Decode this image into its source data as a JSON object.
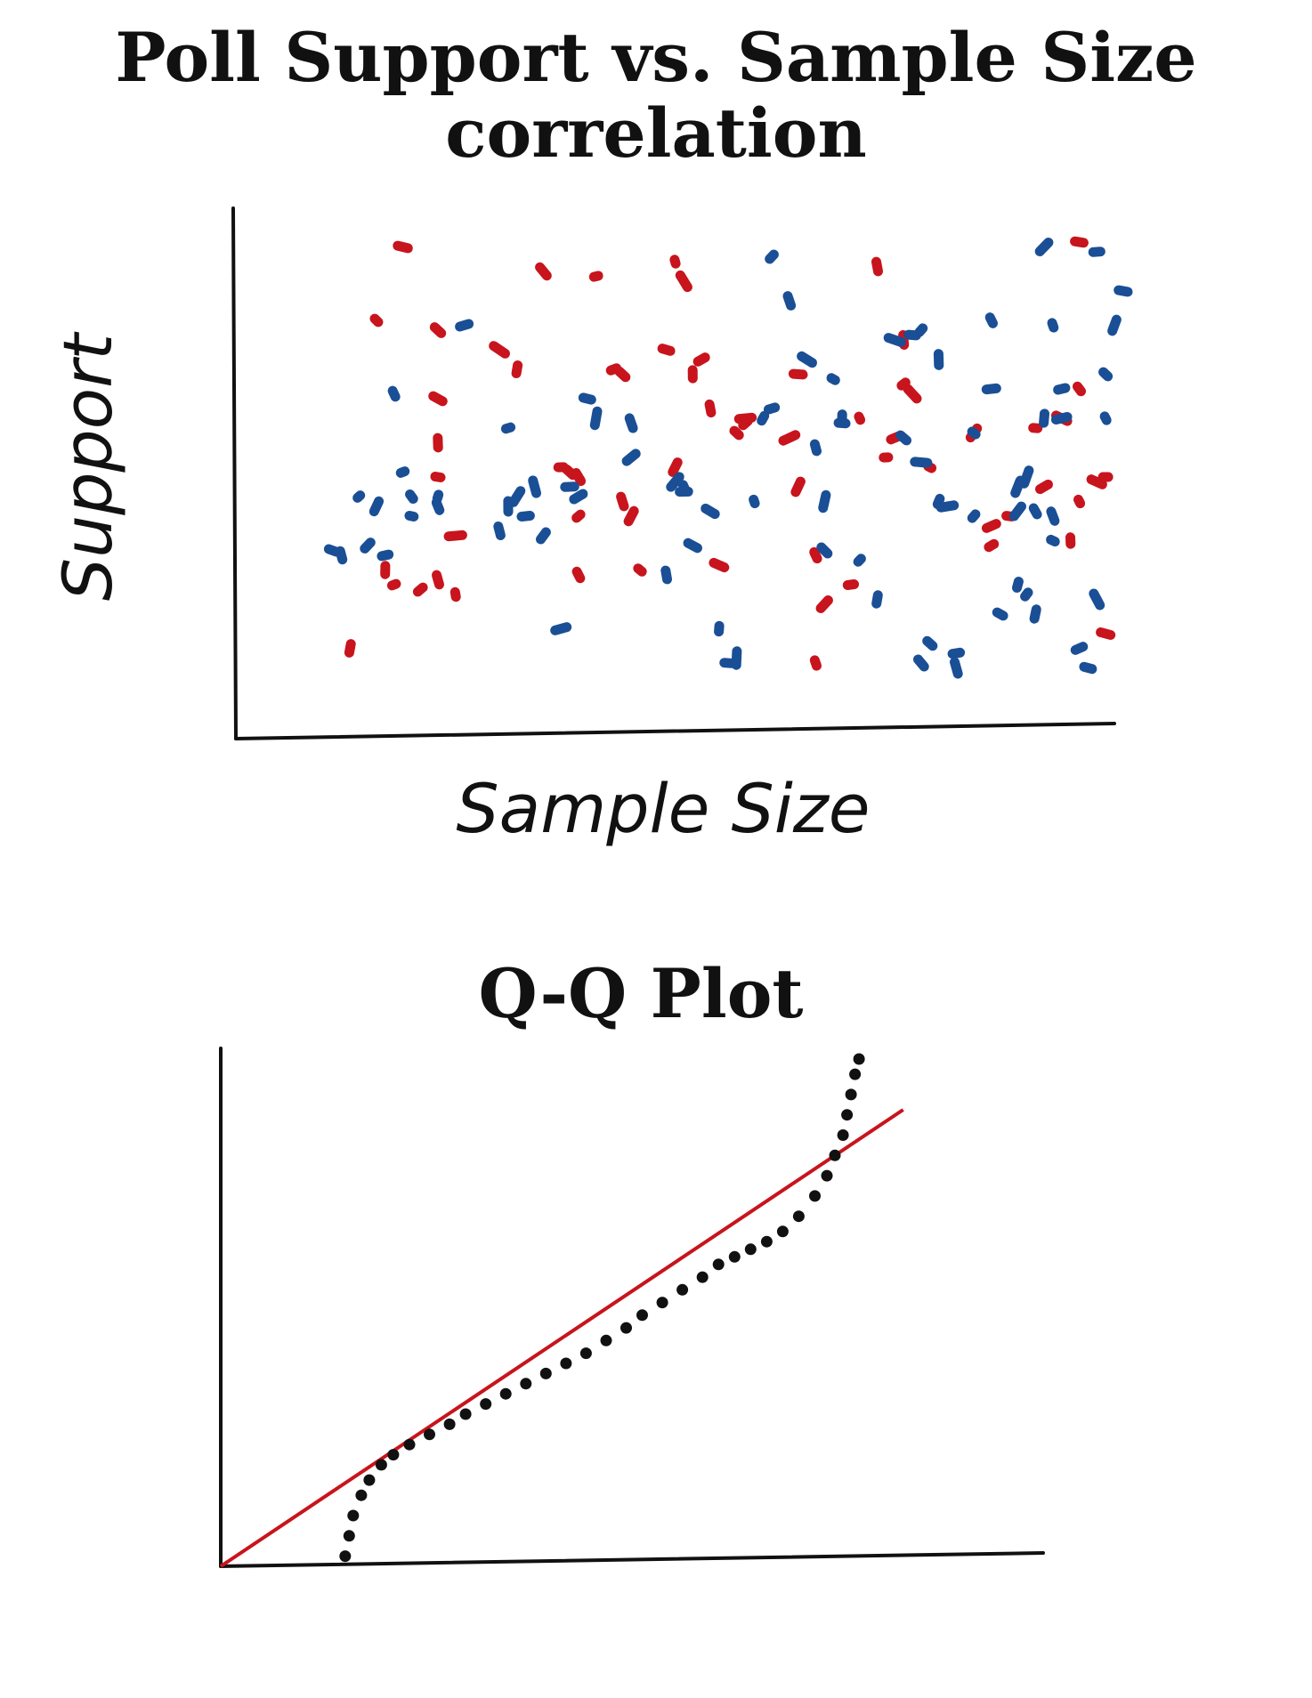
{
  "chart_data": [
    {
      "type": "scatter",
      "title": "Poll Support vs. Sample Size correlation",
      "xlabel": "Sample Size",
      "ylabel": "Support",
      "xlim": [
        0,
        100
      ],
      "ylim": [
        0,
        100
      ],
      "grid": false,
      "series": [
        {
          "color": "#c8141c",
          "points": [
            [
              13,
              13
            ],
            [
              16,
              80
            ],
            [
              17,
              29
            ],
            [
              18,
              26
            ],
            [
              23,
              27
            ],
            [
              21,
              25
            ],
            [
              19,
              95
            ],
            [
              23,
              78
            ],
            [
              23,
              64
            ],
            [
              23,
              55
            ],
            [
              23,
              48
            ],
            [
              25,
              36
            ],
            [
              25,
              24
            ],
            [
              30,
              74
            ],
            [
              32,
              70
            ],
            [
              35,
              90
            ],
            [
              37,
              50
            ],
            [
              38,
              49
            ],
            [
              39,
              48
            ],
            [
              39,
              40
            ],
            [
              39,
              28
            ],
            [
              41,
              89
            ],
            [
              43,
              70
            ],
            [
              44,
              69
            ],
            [
              44,
              43
            ],
            [
              45,
              40
            ],
            [
              46,
              29
            ],
            [
              49,
              74
            ],
            [
              50,
              92
            ],
            [
              50,
              50
            ],
            [
              51,
              88
            ],
            [
              52,
              69
            ],
            [
              53,
              72
            ],
            [
              54,
              62
            ],
            [
              57,
              57
            ],
            [
              55,
              30
            ],
            [
              58,
              59
            ],
            [
              58,
              60
            ],
            [
              63,
              56
            ],
            [
              64,
              46
            ],
            [
              64,
              69
            ],
            [
              66,
              32
            ],
            [
              66,
              10
            ],
            [
              67,
              22
            ],
            [
              70,
              26
            ],
            [
              71,
              60
            ],
            [
              73,
              91
            ],
            [
              74,
              52
            ],
            [
              75,
              56
            ],
            [
              76,
              76
            ],
            [
              76,
              67
            ],
            [
              77,
              65
            ],
            [
              79,
              50
            ],
            [
              84,
              57
            ],
            [
              86,
              38
            ],
            [
              86,
              34
            ],
            [
              88,
              40
            ],
            [
              91,
              58
            ],
            [
              92,
              46
            ],
            [
              94,
              60
            ],
            [
              96,
              96
            ],
            [
              95,
              35
            ],
            [
              96,
              43
            ],
            [
              96,
              66
            ],
            [
              98,
              47
            ],
            [
              99,
              48
            ],
            [
              99,
              16
            ]
          ]
        },
        {
          "color": "#1a4f96",
          "points": [
            [
              11,
              33
            ],
            [
              12,
              32
            ],
            [
              14,
              44
            ],
            [
              15,
              34
            ],
            [
              17,
              32
            ],
            [
              16,
              42
            ],
            [
              18,
              65
            ],
            [
              19,
              49
            ],
            [
              20,
              40
            ],
            [
              20,
              44
            ],
            [
              23,
              44
            ],
            [
              23,
              42
            ],
            [
              26,
              79
            ],
            [
              30,
              37
            ],
            [
              31,
              58
            ],
            [
              31,
              42
            ],
            [
              32,
              44
            ],
            [
              33,
              40
            ],
            [
              34,
              46
            ],
            [
              35,
              36
            ],
            [
              37,
              17
            ],
            [
              38,
              46
            ],
            [
              39,
              44
            ],
            [
              40,
              64
            ],
            [
              41,
              60
            ],
            [
              45,
              59
            ],
            [
              45,
              52
            ],
            [
              49,
              28
            ],
            [
              50,
              47
            ],
            [
              51,
              46
            ],
            [
              51,
              45
            ],
            [
              52,
              34
            ],
            [
              54,
              41
            ],
            [
              55,
              17
            ],
            [
              56,
              10
            ],
            [
              57,
              11
            ],
            [
              59,
              43
            ],
            [
              60,
              60
            ],
            [
              61,
              93
            ],
            [
              61,
              62
            ],
            [
              63,
              84
            ],
            [
              65,
              72
            ],
            [
              66,
              54
            ],
            [
              67,
              43
            ],
            [
              68,
              68
            ],
            [
              67,
              33
            ],
            [
              69,
              60
            ],
            [
              69,
              59
            ],
            [
              71,
              31
            ],
            [
              73,
              23
            ],
            [
              75,
              76
            ],
            [
              76,
              56
            ],
            [
              77,
              77
            ],
            [
              78,
              78
            ],
            [
              78,
              51
            ],
            [
              78,
              10
            ],
            [
              79,
              14
            ],
            [
              80,
              72
            ],
            [
              80,
              43
            ],
            [
              81,
              42
            ],
            [
              82,
              12
            ],
            [
              82,
              9
            ],
            [
              84,
              57
            ],
            [
              84,
              40
            ],
            [
              86,
              66
            ],
            [
              86,
              80
            ],
            [
              87,
              20
            ],
            [
              89,
              46
            ],
            [
              89,
              41
            ],
            [
              89,
              26
            ],
            [
              90,
              24
            ],
            [
              90,
              48
            ],
            [
              91,
              41
            ],
            [
              91,
              20
            ],
            [
              93,
              79
            ],
            [
              92,
              95
            ],
            [
              92,
              60
            ],
            [
              93,
              40
            ],
            [
              93,
              35
            ],
            [
              94,
              66
            ],
            [
              94,
              60
            ],
            [
              96,
              13
            ],
            [
              97,
              9
            ],
            [
              98,
              23
            ],
            [
              99,
              69
            ],
            [
              99,
              60
            ],
            [
              98,
              94
            ],
            [
              100,
              79
            ],
            [
              101,
              86
            ]
          ]
        }
      ]
    },
    {
      "type": "line",
      "title": "Q-Q Plot",
      "xlabel": "",
      "ylabel": "",
      "xlim": [
        0,
        100
      ],
      "ylim": [
        0,
        100
      ],
      "grid": false,
      "series": [
        {
          "color": "#c8141c",
          "kind": "reference-line",
          "points": [
            [
              0,
              0
            ],
            [
              85,
              90
            ]
          ]
        },
        {
          "color": "#111111",
          "kind": "points",
          "points": [
            [
              15.5,
              2
            ],
            [
              16,
              6
            ],
            [
              16.5,
              10
            ],
            [
              17.5,
              14
            ],
            [
              18.5,
              17
            ],
            [
              20,
              20
            ],
            [
              21.5,
              22
            ],
            [
              23.5,
              24
            ],
            [
              26,
              26
            ],
            [
              28.5,
              28
            ],
            [
              30.5,
              30
            ],
            [
              33,
              32
            ],
            [
              35.5,
              34
            ],
            [
              38,
              36
            ],
            [
              40.5,
              38
            ],
            [
              43,
              40
            ],
            [
              45.5,
              42
            ],
            [
              48,
              44.5
            ],
            [
              50.5,
              47
            ],
            [
              52.5,
              49.5
            ],
            [
              55,
              52
            ],
            [
              57.5,
              54.5
            ],
            [
              60,
              57
            ],
            [
              62,
              59.5
            ],
            [
              64,
              61
            ],
            [
              66,
              62.5
            ],
            [
              68,
              64
            ],
            [
              70,
              66
            ],
            [
              72,
              69
            ],
            [
              74,
              73
            ],
            [
              75.5,
              77
            ],
            [
              76.5,
              81
            ],
            [
              77.5,
              85
            ],
            [
              78,
              89
            ],
            [
              78.5,
              93
            ],
            [
              79,
              97
            ],
            [
              79.5,
              100
            ]
          ]
        }
      ]
    }
  ]
}
